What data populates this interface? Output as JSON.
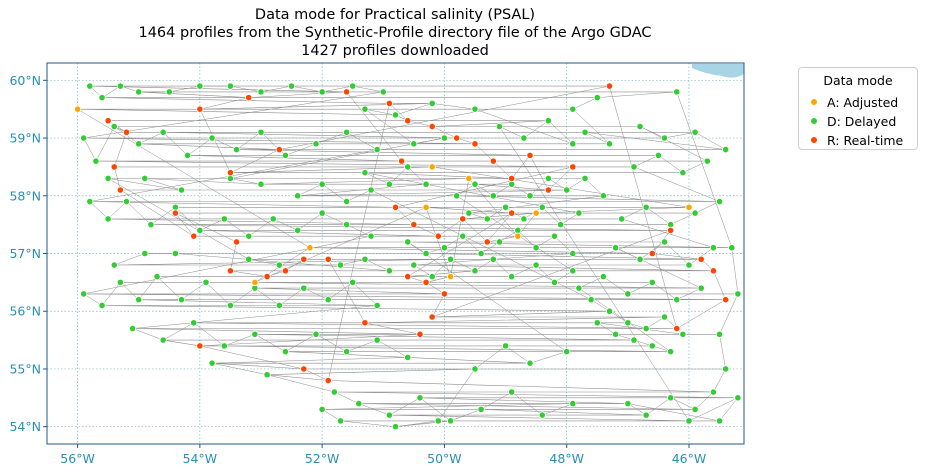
{
  "chart_data": {
    "type": "scatter",
    "title_lines": [
      "Data mode for Practical salinity (PSAL)",
      "1464 profiles from the Synthetic-Profile directory file of the Argo GDAC",
      "1427 profiles downloaded"
    ],
    "x_ticks": [
      {
        "value": -56,
        "label": "56°W"
      },
      {
        "value": -54,
        "label": "54°W"
      },
      {
        "value": -52,
        "label": "52°W"
      },
      {
        "value": -50,
        "label": "50°W"
      },
      {
        "value": -48,
        "label": "48°W"
      },
      {
        "value": -46,
        "label": "46°W"
      }
    ],
    "y_ticks": [
      {
        "value": 54,
        "label": "54°N"
      },
      {
        "value": 55,
        "label": "55°N"
      },
      {
        "value": 56,
        "label": "56°N"
      },
      {
        "value": 57,
        "label": "57°N"
      },
      {
        "value": 58,
        "label": "58°N"
      },
      {
        "value": 59,
        "label": "59°N"
      },
      {
        "value": 60,
        "label": "60°N"
      }
    ],
    "xlim": [
      -56.5,
      -45.1
    ],
    "ylim": [
      53.7,
      60.3
    ],
    "grid": true,
    "legend_placement": "outside-right",
    "legend_title": "Data mode",
    "series": [
      {
        "name": "A: Adjusted",
        "color": "#ffa500",
        "points": [
          [
            -56,
            59.5
          ],
          [
            -52.2,
            57.1
          ],
          [
            -53.1,
            56.5
          ],
          [
            -50.3,
            57.8
          ],
          [
            -49.9,
            56.6
          ],
          [
            -49.6,
            58.3
          ],
          [
            -48.8,
            57.3
          ],
          [
            -48.5,
            57.7
          ],
          [
            -46,
            57.8
          ],
          [
            -50.2,
            58.5
          ]
        ]
      },
      {
        "name": "D: Delayed",
        "color": "#32cd32",
        "points": [
          [
            -55.8,
            59.9
          ],
          [
            -55.6,
            59.7
          ],
          [
            -55.3,
            59.9
          ],
          [
            -55,
            59.8
          ],
          [
            -54.5,
            59.8
          ],
          [
            -54,
            59.9
          ],
          [
            -53.5,
            59.9
          ],
          [
            -53,
            59.8
          ],
          [
            -52.5,
            59.9
          ],
          [
            -52,
            59.8
          ],
          [
            -51.5,
            59.9
          ],
          [
            -51,
            59.8
          ],
          [
            -55.9,
            59
          ],
          [
            -55.7,
            58.6
          ],
          [
            -55.4,
            59.2
          ],
          [
            -55,
            58.9
          ],
          [
            -54.6,
            59.1
          ],
          [
            -54.2,
            58.7
          ],
          [
            -53.8,
            59
          ],
          [
            -53.4,
            58.8
          ],
          [
            -53,
            59.1
          ],
          [
            -52.6,
            58.7
          ],
          [
            -52.1,
            58.9
          ],
          [
            -51.6,
            59.1
          ],
          [
            -51.1,
            58.8
          ],
          [
            -55.8,
            57.9
          ],
          [
            -55.5,
            57.6
          ],
          [
            -55.2,
            57.9
          ],
          [
            -54.8,
            57.5
          ],
          [
            -54.4,
            57.8
          ],
          [
            -54,
            57.4
          ],
          [
            -53.6,
            57.6
          ],
          [
            -53.2,
            57.3
          ],
          [
            -52.8,
            57.6
          ],
          [
            -52.4,
            57.4
          ],
          [
            -52,
            57.7
          ],
          [
            -51.6,
            57.5
          ],
          [
            -51.2,
            57.3
          ],
          [
            -55.9,
            56.3
          ],
          [
            -55.6,
            56.1
          ],
          [
            -55.3,
            56.5
          ],
          [
            -55,
            56.2
          ],
          [
            -54.7,
            56.6
          ],
          [
            -54.3,
            56.2
          ],
          [
            -53.9,
            56.5
          ],
          [
            -53.5,
            56.1
          ],
          [
            -53.1,
            56.4
          ],
          [
            -52.7,
            56.1
          ],
          [
            -52.3,
            56.4
          ],
          [
            -51.9,
            56.2
          ],
          [
            -51.5,
            56.5
          ],
          [
            -51.1,
            56.1
          ],
          [
            -55.1,
            55.7
          ],
          [
            -54.6,
            55.5
          ],
          [
            -54.1,
            55.8
          ],
          [
            -53.6,
            55.4
          ],
          [
            -53.1,
            55.6
          ],
          [
            -52.6,
            55.3
          ],
          [
            -52.1,
            55.6
          ],
          [
            -51.6,
            55.3
          ],
          [
            -51.1,
            55.5
          ],
          [
            -50.6,
            55.2
          ],
          [
            -53.8,
            55.1
          ],
          [
            -52.9,
            54.9
          ],
          [
            -51.8,
            54.6
          ],
          [
            -51.4,
            54.4
          ],
          [
            -50.9,
            54.2
          ],
          [
            -50.4,
            54.5
          ],
          [
            -49.9,
            54.1
          ],
          [
            -49.4,
            54.3
          ],
          [
            -48.9,
            54.6
          ],
          [
            -48.4,
            54.2
          ],
          [
            -47.9,
            54.4
          ],
          [
            -52,
            54.3
          ],
          [
            -51.7,
            54.1
          ],
          [
            -50.8,
            54
          ],
          [
            -50.1,
            54.1
          ],
          [
            -49.5,
            55
          ],
          [
            -49,
            55.4
          ],
          [
            -48.6,
            55.1
          ],
          [
            -48,
            55.3
          ],
          [
            -50.6,
            57.2
          ],
          [
            -50.3,
            57
          ],
          [
            -50,
            57.1
          ],
          [
            -49.7,
            57.3
          ],
          [
            -49.4,
            57
          ],
          [
            -49.1,
            57.2
          ],
          [
            -48.8,
            57.4
          ],
          [
            -48.5,
            57.1
          ],
          [
            -48.2,
            57.3
          ],
          [
            -47.9,
            57
          ],
          [
            -50.5,
            56.8
          ],
          [
            -50.2,
            56.6
          ],
          [
            -49.9,
            56.9
          ],
          [
            -49.5,
            56.7
          ],
          [
            -49.2,
            56.9
          ],
          [
            -48.9,
            56.6
          ],
          [
            -48.5,
            56.8
          ],
          [
            -48.2,
            56.5
          ],
          [
            -47.9,
            56.7
          ],
          [
            -49.8,
            58
          ],
          [
            -49.5,
            58.2
          ],
          [
            -49.2,
            58
          ],
          [
            -48.9,
            58.2
          ],
          [
            -48.6,
            58
          ],
          [
            -48.3,
            58.3
          ],
          [
            -48,
            58.1
          ],
          [
            -47.7,
            58.3
          ],
          [
            -47.4,
            58
          ],
          [
            -49.6,
            57.7
          ],
          [
            -49.3,
            57.6
          ],
          [
            -49,
            57.8
          ],
          [
            -48.7,
            57.6
          ],
          [
            -48.4,
            57.8
          ],
          [
            -48.1,
            57.5
          ],
          [
            -47.8,
            57.7
          ],
          [
            -51.3,
            58.4
          ],
          [
            -50.9,
            58.2
          ],
          [
            -50.6,
            58.5
          ],
          [
            -50.3,
            58.2
          ],
          [
            -52.4,
            58
          ],
          [
            -52,
            58.2
          ],
          [
            -51.6,
            57.9
          ],
          [
            -51.2,
            58.1
          ],
          [
            -47.6,
            56.2
          ],
          [
            -47.3,
            56
          ],
          [
            -47,
            55.8
          ],
          [
            -46.7,
            55.7
          ],
          [
            -46.4,
            55.9
          ],
          [
            -46.1,
            55.6
          ],
          [
            -47.5,
            55.8
          ],
          [
            -47.2,
            55.6
          ],
          [
            -46.9,
            55.5
          ],
          [
            -46.6,
            55.4
          ],
          [
            -46.3,
            55.3
          ],
          [
            -47.8,
            56.4
          ],
          [
            -47.4,
            56.6
          ],
          [
            -47,
            56.3
          ],
          [
            -46.6,
            56.5
          ],
          [
            -46.2,
            56.2
          ],
          [
            -45.8,
            56.4
          ],
          [
            -47.2,
            57.1
          ],
          [
            -46.8,
            56.9
          ],
          [
            -46.4,
            57.2
          ],
          [
            -46,
            56.8
          ],
          [
            -45.6,
            57.1
          ],
          [
            -47.1,
            57.6
          ],
          [
            -46.7,
            57.8
          ],
          [
            -46.3,
            57.5
          ],
          [
            -45.9,
            57.7
          ],
          [
            -45.5,
            57.9
          ],
          [
            -46.9,
            58.5
          ],
          [
            -46.5,
            58.7
          ],
          [
            -46.1,
            58.4
          ],
          [
            -45.7,
            58.6
          ],
          [
            -46.8,
            59.2
          ],
          [
            -46.4,
            59
          ],
          [
            -45.9,
            59.1
          ],
          [
            -45.4,
            58.8
          ],
          [
            -47.7,
            59.1
          ],
          [
            -47.3,
            58.9
          ],
          [
            -47.9,
            59.5
          ],
          [
            -47.5,
            59.7
          ],
          [
            -46.2,
            59.8
          ],
          [
            -45.3,
            57.1
          ],
          [
            -45.2,
            56.3
          ],
          [
            -45.5,
            55.6
          ],
          [
            -45.4,
            55
          ],
          [
            -45.6,
            54.6
          ],
          [
            -45.9,
            54.3
          ],
          [
            -46.3,
            54.5
          ],
          [
            -46.7,
            54.2
          ],
          [
            -47,
            54.4
          ],
          [
            -45.5,
            54.1
          ],
          [
            -45.2,
            54.5
          ],
          [
            -46,
            54.1
          ],
          [
            -49.1,
            59.2
          ],
          [
            -48.7,
            59
          ],
          [
            -48.3,
            59.3
          ],
          [
            -47.9,
            58.9
          ],
          [
            -49.5,
            59.5
          ],
          [
            -50.2,
            59.6
          ],
          [
            -50.8,
            59.4
          ],
          [
            -51.3,
            59.5
          ],
          [
            -50.5,
            58.9
          ],
          [
            -50,
            59
          ],
          [
            -53.5,
            58.3
          ],
          [
            -53,
            58.2
          ],
          [
            -54.9,
            58.3
          ],
          [
            -54.3,
            58.1
          ],
          [
            -55.5,
            58.3
          ],
          [
            -53.2,
            56.9
          ],
          [
            -52.7,
            56.8
          ],
          [
            -51.7,
            56.8
          ],
          [
            -51.3,
            56.9
          ],
          [
            -50.9,
            56.7
          ],
          [
            -54.4,
            57
          ],
          [
            -54.9,
            57
          ],
          [
            -55.4,
            56.8
          ]
        ]
      },
      {
        "name": "R: Real-time",
        "color": "#ff4500",
        "points": [
          [
            -55.5,
            59.3
          ],
          [
            -55.2,
            59.1
          ],
          [
            -55.4,
            58.5
          ],
          [
            -55.3,
            58.1
          ],
          [
            -54.1,
            57.3
          ],
          [
            -54.4,
            57.7
          ],
          [
            -53.4,
            57.2
          ],
          [
            -53.5,
            56.7
          ],
          [
            -52.9,
            56.6
          ],
          [
            -52.6,
            56.7
          ],
          [
            -52.3,
            56.9
          ],
          [
            -51.9,
            56.9
          ],
          [
            -51.3,
            55.8
          ],
          [
            -50.4,
            55.6
          ],
          [
            -54,
            55.4
          ],
          [
            -52.3,
            55
          ],
          [
            -51.9,
            54.8
          ],
          [
            -50.9,
            59.6
          ],
          [
            -50.6,
            59.3
          ],
          [
            -50.2,
            59.2
          ],
          [
            -49.8,
            59
          ],
          [
            -49.5,
            58.9
          ],
          [
            -49.2,
            58.6
          ],
          [
            -48.9,
            58.3
          ],
          [
            -48.6,
            58.7
          ],
          [
            -48.3,
            58.1
          ],
          [
            -47.9,
            58.5
          ],
          [
            -50.8,
            57.8
          ],
          [
            -50.5,
            57.5
          ],
          [
            -50.1,
            57.3
          ],
          [
            -49.7,
            57.6
          ],
          [
            -49.3,
            57.2
          ],
          [
            -48.9,
            57.7
          ],
          [
            -50.6,
            56.6
          ],
          [
            -50.3,
            56.5
          ],
          [
            -50,
            56.3
          ],
          [
            -50.2,
            55.9
          ],
          [
            -46.3,
            57.4
          ],
          [
            -46.6,
            57
          ],
          [
            -45.8,
            56.9
          ],
          [
            -45.6,
            56.7
          ],
          [
            -45.4,
            56.2
          ],
          [
            -46.2,
            55.7
          ],
          [
            -47.3,
            59.9
          ],
          [
            -52.7,
            58.8
          ],
          [
            -53.5,
            58.4
          ],
          [
            -54,
            59.5
          ],
          [
            -53.2,
            59.7
          ],
          [
            -51.6,
            59.8
          ],
          [
            -50.7,
            58.6
          ]
        ]
      }
    ]
  }
}
